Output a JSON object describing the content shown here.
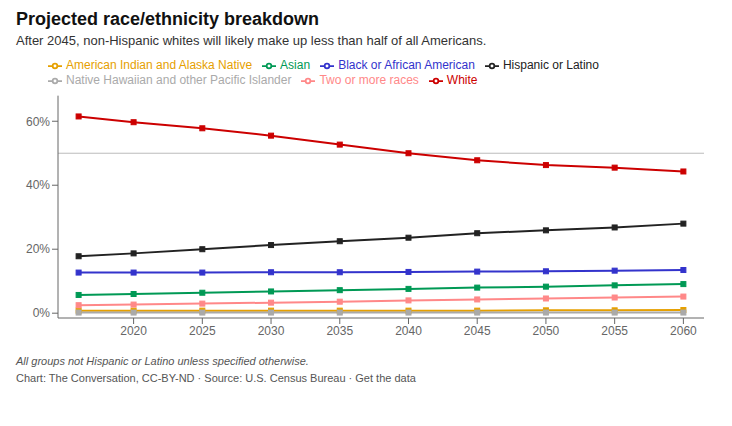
{
  "chart_data": {
    "type": "line",
    "title": "Projected race/ethnicity breakdown",
    "subtitle": "After 2045, non-Hispanic whites will likely make up less than half of all Americans.",
    "footnote": "All groups not Hispanic or Latino unless specified otherwise.",
    "source": "Chart: The Conversation, CC-BY-ND · Source: U.S. Census Bureau · Get the data",
    "x": [
      2016,
      2020,
      2025,
      2030,
      2035,
      2040,
      2045,
      2050,
      2055,
      2060
    ],
    "series": [
      {
        "name": "White",
        "color": "#cc0000",
        "values": [
          61.5,
          59.7,
          57.8,
          55.5,
          52.7,
          50.0,
          47.8,
          46.3,
          45.5,
          44.3
        ]
      },
      {
        "name": "Black or African American",
        "color": "#3333cc",
        "values": [
          12.7,
          12.7,
          12.7,
          12.8,
          12.8,
          12.9,
          13.0,
          13.1,
          13.3,
          13.5
        ]
      },
      {
        "name": "American Indian and Alaska Native",
        "color": "#e6a000",
        "values": [
          0.8,
          0.8,
          0.8,
          0.8,
          0.8,
          0.8,
          0.8,
          0.9,
          0.9,
          1.0
        ]
      },
      {
        "name": "Asian",
        "color": "#009955",
        "values": [
          5.7,
          6.0,
          6.4,
          6.8,
          7.2,
          7.6,
          8.0,
          8.3,
          8.7,
          9.1
        ]
      },
      {
        "name": "Native Hawaiian and other Pacific Islander",
        "color": "#aaaaaa",
        "values": [
          0.2,
          0.2,
          0.2,
          0.2,
          0.2,
          0.2,
          0.2,
          0.2,
          0.2,
          0.2
        ]
      },
      {
        "name": "Two or more races",
        "color": "#ff8888",
        "values": [
          2.5,
          2.7,
          3.0,
          3.3,
          3.6,
          4.0,
          4.3,
          4.6,
          4.9,
          5.2
        ]
      },
      {
        "name": "Hispanic or Latino",
        "color": "#222222",
        "values": [
          17.8,
          18.7,
          20.0,
          21.3,
          22.5,
          23.6,
          25.0,
          25.9,
          26.8,
          28.0
        ]
      }
    ],
    "xlim": [
      2014.5,
      2061.5
    ],
    "xticks": [
      2020,
      2025,
      2030,
      2035,
      2040,
      2045,
      2050,
      2055,
      2060
    ],
    "ylim": [
      -1.5,
      68
    ],
    "yticks": [
      {
        "value": 0,
        "label": "0%"
      },
      {
        "value": 20,
        "label": "20%"
      },
      {
        "value": 40,
        "label": "40%"
      },
      {
        "value": 60,
        "label": "60%"
      }
    ],
    "grid": false,
    "legend": "top",
    "marker": "square",
    "hline": 50
  }
}
